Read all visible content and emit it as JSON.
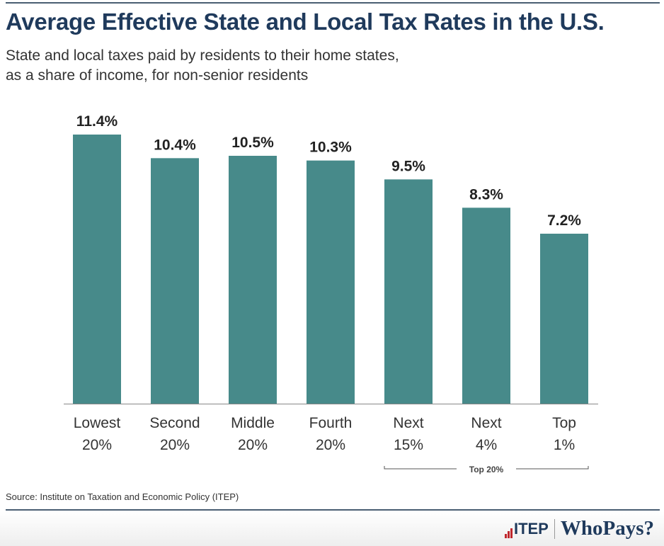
{
  "chart_data": {
    "type": "bar",
    "title": "Average Effective State and Local Tax Rates in the U.S.",
    "subtitle": [
      "State and local taxes paid by residents to their home states,",
      "as a share of income, for non-senior residents"
    ],
    "categories": [
      [
        "Lowest",
        "20%"
      ],
      [
        "Second",
        "20%"
      ],
      [
        "Middle",
        "20%"
      ],
      [
        "Fourth",
        "20%"
      ],
      [
        "Next",
        "15%"
      ],
      [
        "Next",
        "4%"
      ],
      [
        "Top",
        "1%"
      ]
    ],
    "values": [
      11.4,
      10.4,
      10.5,
      10.3,
      9.5,
      8.3,
      7.2
    ],
    "data_labels": [
      "11.4%",
      "10.4%",
      "10.5%",
      "10.3%",
      "9.5%",
      "8.3%",
      "7.2%"
    ],
    "ylim": [
      0,
      11.4
    ],
    "grid": false,
    "bar_color": "#478a8a",
    "annotation": {
      "text": "Top 20%",
      "spans_categories": [
        4,
        6
      ]
    },
    "source": "Source: Institute on Taxation and Economic Policy (ITEP)"
  },
  "branding": {
    "logo_left": "ITEP",
    "logo_right": "WhoPays?"
  },
  "colors": {
    "title": "#1f3a5c",
    "accent_red": "#c0272d"
  }
}
